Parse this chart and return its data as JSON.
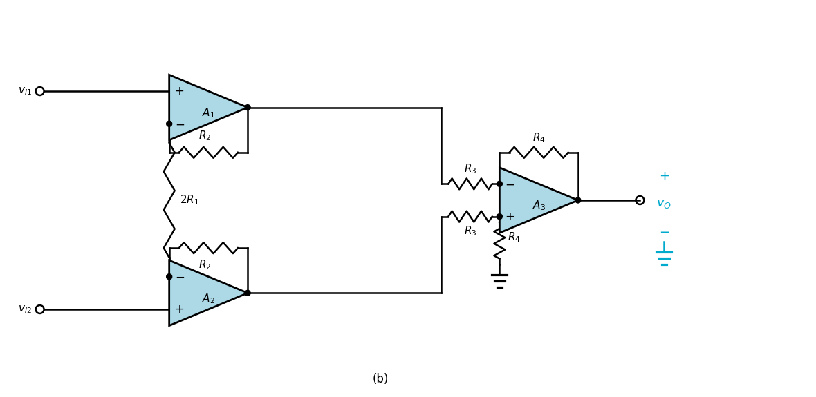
{
  "bg_color": "#ffffff",
  "op_amp_fill": "#add8e6",
  "op_amp_edge": "#000000",
  "line_color": "#000000",
  "resistor_color": "#000000",
  "label_color": "#000000",
  "cyan_color": "#00aacc",
  "fig_width": 11.8,
  "fig_height": 5.75,
  "title": "(b)"
}
